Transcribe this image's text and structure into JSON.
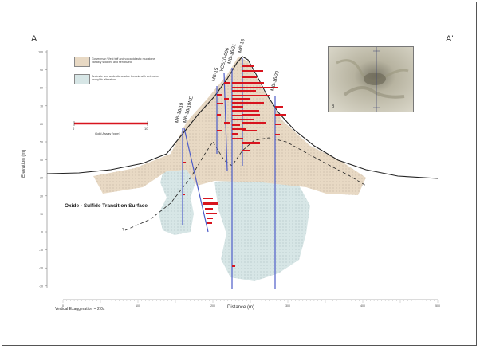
{
  "section": {
    "start_label": "A",
    "end_label": "A'",
    "y_axis_title": "Elevation (m)",
    "x_axis_title": "Distance (m)",
    "vertical_exaggeration": "Vertical Exaggeration = 2.0x",
    "transition_label": "Oxide - Sulfide Transition Surface",
    "transition_marker": "?",
    "y_ticks": [
      "100",
      "90",
      "80",
      "70",
      "60",
      "50",
      "40",
      "30",
      "20",
      "10",
      "0",
      "-10",
      "-20",
      "-30"
    ],
    "x_ticks": [
      "0",
      "100",
      "200",
      "300",
      "400",
      "500"
    ]
  },
  "legend": {
    "unit1": "Goweeman West tuff and volcaniclastic mudstone variably silicified and sericitized",
    "unit2": "Andesite and andesite crackle breccia with extensive propylitic alteration",
    "assay_scale_min": "0",
    "assay_scale_max": "10",
    "assay_title": "Gold Assay (ppm)"
  },
  "drillholes": [
    {
      "id": "MB-16/19"
    },
    {
      "id": "MB-16/19NE"
    },
    {
      "id": "MB-15"
    },
    {
      "id": "YCS10-006"
    },
    {
      "id": "MB-16/21"
    },
    {
      "id": "MB-13"
    },
    {
      "id": "MB-16/20"
    }
  ],
  "inset": {
    "label": "B"
  },
  "colors": {
    "tuff_unit": "#e8d9c4",
    "andesite_unit": "#d7e6e6",
    "assay": "#d8141e",
    "drill_trace": "#4d5cc8",
    "topography": "#222222"
  }
}
